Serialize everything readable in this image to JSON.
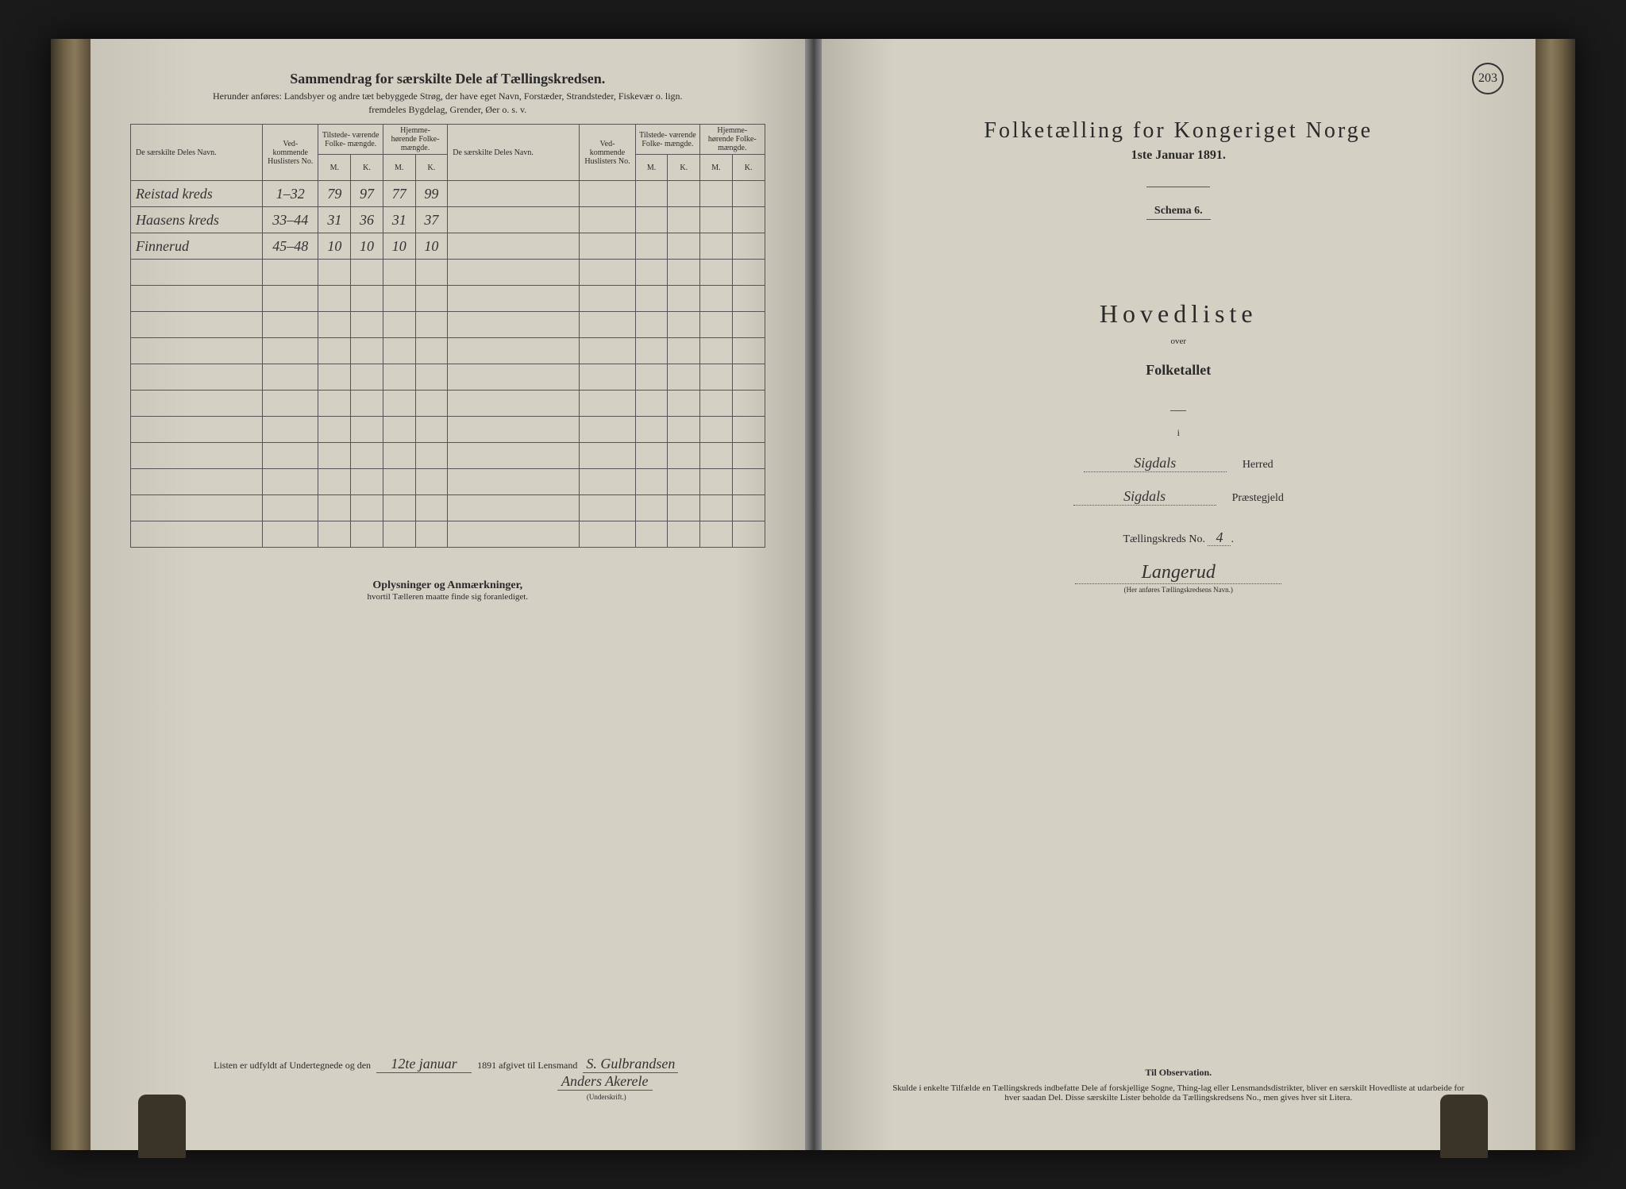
{
  "page_number": "203",
  "left_page": {
    "title": "Sammendrag for særskilte Dele af Tællingskredsen.",
    "subtitle1": "Herunder anføres: Landsbyer og andre tæt bebyggede Strøg, der have eget Navn, Forstæder, Strandsteder, Fiskevær o. lign.",
    "subtitle2": "fremdeles Bygdelag, Grender, Øer o. s. v.",
    "headers": {
      "name": "De særskilte Deles Navn.",
      "huslister": "Ved-\nkommende\nHuslisters\nNo.",
      "tilstede": "Tilstede-\nværende\nFolke-\nmængde.",
      "hjemme": "Hjemme-\nhørende\nFolke-\nmængde.",
      "m": "M.",
      "k": "K."
    },
    "rows": [
      {
        "name": "Reistad kreds",
        "no": "1–32",
        "tm": "79",
        "tk": "97",
        "hm": "77",
        "hk": "99"
      },
      {
        "name": "Haasens kreds",
        "no": "33–44",
        "tm": "31",
        "tk": "36",
        "hm": "31",
        "hk": "37"
      },
      {
        "name": "Finnerud",
        "no": "45–48",
        "tm": "10",
        "tk": "10",
        "hm": "10",
        "hk": "10"
      }
    ],
    "notes_title": "Oplysninger og Anmærkninger,",
    "notes_sub": "hvortil Tælleren maatte finde sig foranlediget.",
    "footer_prefix": "Listen er udfyldt af Undertegnede og den",
    "footer_date": "12te januar",
    "footer_year": "1891 afgivet til Lensmand",
    "signature1": "S. Gulbrandsen",
    "signature2": "Anders Akerele",
    "signature_label": "(Underskrift.)"
  },
  "right_page": {
    "title": "Folketælling for Kongeriget Norge",
    "date": "1ste Januar 1891.",
    "schema": "Schema 6.",
    "hovedliste": "Hovedliste",
    "over": "over",
    "folketallet": "Folketallet",
    "i": "i",
    "herred_value": "Sigdals",
    "herred_label": "Herred",
    "prestegjeld_value": "Sigdals",
    "prestegjeld_label": "Præstegjeld",
    "kreds_label_prefix": "Tællingskreds No.",
    "kreds_no": "4",
    "kreds_name": "Langerud",
    "kreds_note": "(Her anføres Tællingskredsens Navn.)",
    "observation_title": "Til Observation.",
    "observation_text": "Skulde i enkelte Tilfælde en Tællingskreds indbefatte Dele af forskjellige Sogne, Thing-lag eller Lensmandsdistrikter, bliver en særskilt Hovedliste at udarbeide for hver saadan Del. Disse særskilte Lister beholde da Tællingskredsens No., men gives hver sit Litera."
  },
  "styling": {
    "page_bg": "#d4d0c4",
    "book_bg": "#1a1a1a",
    "text_color": "#2a2a2a",
    "border_color": "#555",
    "handwriting_color": "#333"
  }
}
